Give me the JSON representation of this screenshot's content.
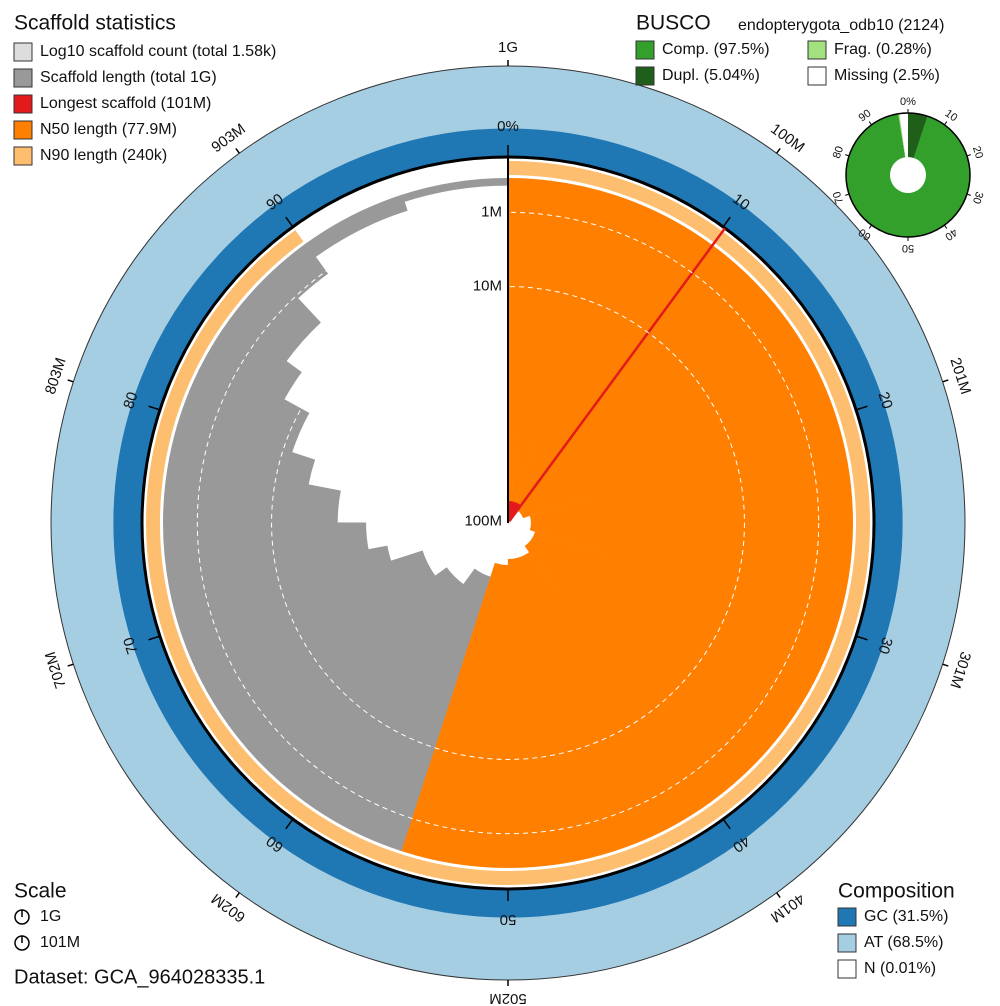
{
  "chart_data": {
    "type": "snail",
    "title": "Scaffold statistics",
    "legend": [
      {
        "name": "Log10 scaffold count (total 1.58k)",
        "color": "#dddddd"
      },
      {
        "name": "Scaffold length (total 1G)",
        "color": "#999999"
      },
      {
        "name": "Longest scaffold (101M)",
        "color": "#e31a1c"
      },
      {
        "name": "N50 length (77.9M)",
        "color": "#ff7f00"
      },
      {
        "name": "N90 length (240k)",
        "color": "#fdbf6f"
      }
    ],
    "total": 1000000000,
    "longest": 101000000,
    "n50": 77900000,
    "n90": 240000,
    "percent": [
      0,
      2,
      5,
      10,
      20,
      30,
      40,
      50,
      55,
      60,
      65,
      70,
      72,
      75,
      78,
      80,
      83,
      85,
      88,
      90,
      95,
      100
    ],
    "length": [
      101000000,
      98000000,
      95000000,
      92000000,
      88000000,
      85000000,
      81000000,
      77900000,
      70600000,
      61600000,
      55300000,
      41900000,
      35000000,
      25900000,
      17100000,
      11800000,
      6800000,
      4250000,
      1200000,
      240000,
      50000,
      10000
    ],
    "rticks": [
      {
        "value": 1000000,
        "label": "1M"
      },
      {
        "value": 10000000,
        "label": "10M"
      },
      {
        "value": 100000000,
        "label": "100M"
      }
    ],
    "pticks": [
      {
        "value": 0,
        "label": "0%"
      },
      10,
      20,
      30,
      40,
      50,
      60,
      70,
      80,
      90
    ],
    "length_ticks": [
      {
        "value": 0,
        "label": "1G"
      },
      {
        "value": 10,
        "label": "100M"
      },
      {
        "value": 20,
        "label": "201M"
      },
      {
        "value": 30,
        "label": "301M"
      },
      {
        "value": 40,
        "label": "401M"
      },
      {
        "value": 50,
        "label": "502M"
      },
      {
        "value": 60,
        "label": "602M"
      },
      {
        "value": 70,
        "label": "702M"
      },
      {
        "value": 80,
        "label": "803M"
      },
      {
        "value": 90,
        "label": "903M"
      }
    ],
    "busco": {
      "title": "BUSCO",
      "lineage": "endopterygota_odb10 (2124)",
      "series": [
        {
          "name": "Comp. (97.5%)",
          "value": 97.5,
          "color": "#33a02c"
        },
        {
          "name": "Frag. (0.28%)",
          "value": 0.28,
          "color": "#a3e07f"
        },
        {
          "name": "Dupl. (5.04%)",
          "value": 5.04,
          "color": "#1f5f1a"
        },
        {
          "name": "Missing (2.5%)",
          "value": 2.5,
          "color": "#ffffff"
        }
      ],
      "ticks": [
        {
          "value": 0,
          "label": "0%"
        },
        10,
        20,
        30,
        40,
        50,
        60,
        70,
        80,
        90
      ]
    },
    "composition": {
      "title": "Composition",
      "series": [
        {
          "name": "GC (31.5%)",
          "value": 31.5,
          "color": "#1f78b4"
        },
        {
          "name": "AT (68.5%)",
          "value": 68.5,
          "color": "#a6cee3"
        },
        {
          "name": "N (0.01%)",
          "value": 0.01,
          "color": "#ffffff"
        }
      ]
    },
    "scale": {
      "title": "Scale",
      "items": [
        "1G",
        "101M"
      ]
    },
    "dataset": "Dataset: GCA_964028335.1"
  }
}
